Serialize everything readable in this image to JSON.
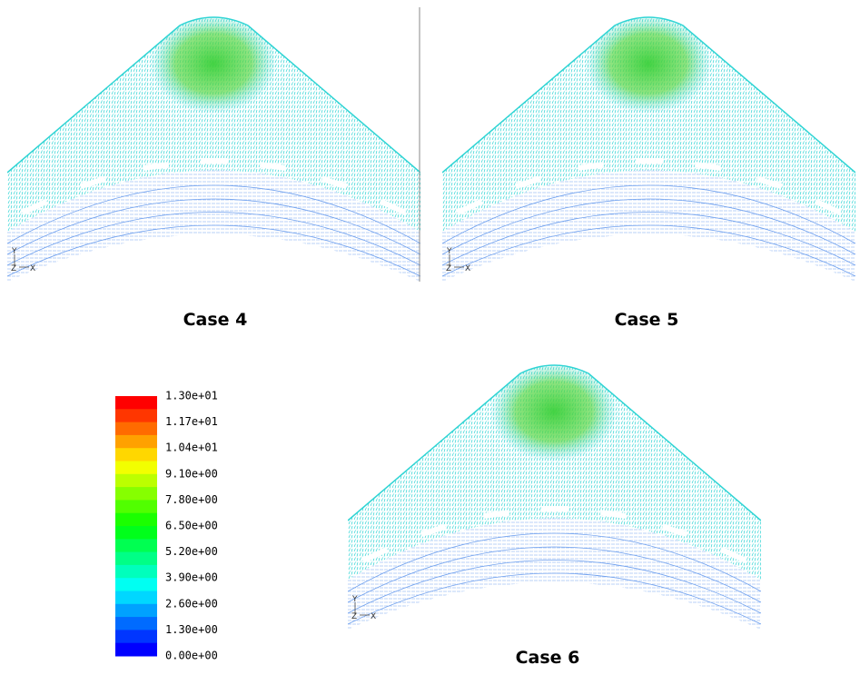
{
  "figure": {
    "panels": [
      {
        "label": "Case 4",
        "axes": {
          "y": "Y",
          "z": "Z",
          "x": "X"
        }
      },
      {
        "label": "Case 5",
        "axes": {
          "y": "Y",
          "z": "Z",
          "x": "X"
        }
      },
      {
        "label": "Case 6",
        "axes": {
          "y": "Y",
          "z": "Z",
          "x": "X"
        }
      }
    ],
    "colorbar": {
      "labels": [
        "1.30e+01",
        "1.17e+01",
        "1.04e+01",
        "9.10e+00",
        "7.80e+00",
        "6.50e+00",
        "5.20e+00",
        "3.90e+00",
        "2.60e+00",
        "1.30e+00",
        "0.00e+00"
      ]
    }
  }
}
